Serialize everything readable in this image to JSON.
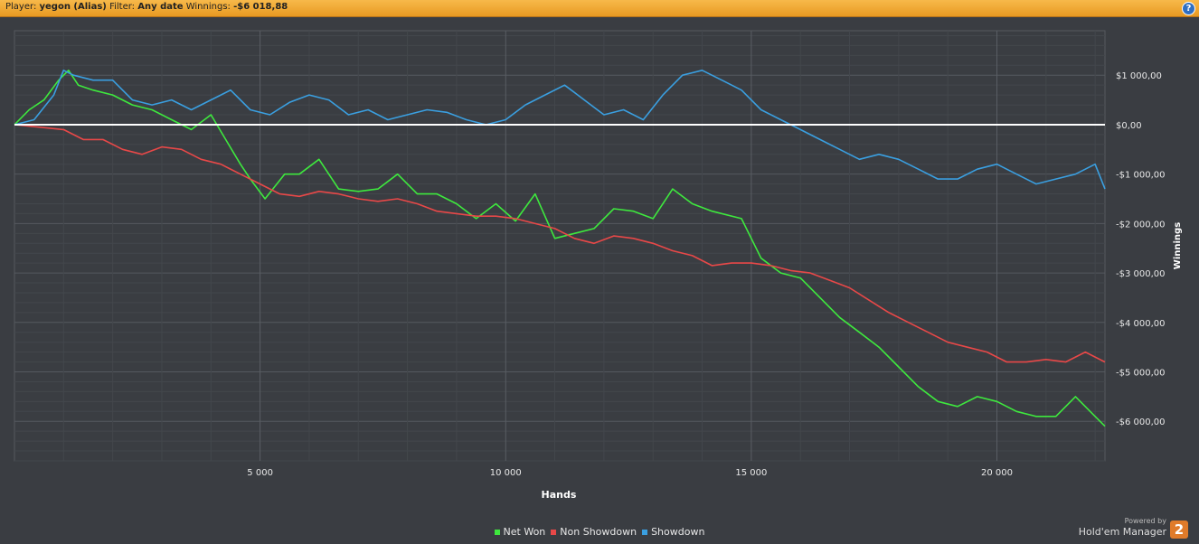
{
  "header": {
    "player_label": "Player:",
    "player_value": "yegon (Alias)",
    "filter_label": "Filter:",
    "filter_value": "Any date",
    "winnings_label": "Winnings:",
    "winnings_value": "-$6 018,88",
    "help_icon": "?"
  },
  "brand": {
    "powered_by": "Powered by",
    "product": "Hold'em Manager",
    "logo_text": "2"
  },
  "chart_data": {
    "type": "line",
    "xlabel": "Hands",
    "ylabel": "Winnings",
    "xlim": [
      0,
      22200
    ],
    "ylim": [
      -6800,
      1900
    ],
    "x_ticks": [
      5000,
      10000,
      15000,
      20000
    ],
    "x_tick_labels": [
      "5 000",
      "10 000",
      "15 000",
      "20 000"
    ],
    "y_ticks": [
      1000,
      0,
      -1000,
      -2000,
      -3000,
      -4000,
      -5000,
      -6000
    ],
    "y_tick_labels": [
      "$1 000,00",
      "$0,00",
      "-$1 000,00",
      "-$2 000,00",
      "-$3 000,00",
      "-$4 000,00",
      "-$5 000,00",
      "-$6 000,00"
    ],
    "grid": true,
    "legend_position": "bottom-center",
    "colors": {
      "background": "#3a3d42",
      "grid": "#4d5157",
      "zero_line": "#ffffff"
    },
    "series": [
      {
        "name": "Net Won",
        "color": "#3ee83e",
        "x": [
          0,
          300,
          600,
          900,
          1100,
          1300,
          1600,
          2000,
          2400,
          2800,
          3200,
          3600,
          4000,
          4300,
          4600,
          4800,
          5100,
          5500,
          5800,
          6200,
          6600,
          7000,
          7400,
          7800,
          8200,
          8600,
          9000,
          9400,
          9800,
          10200,
          10600,
          11000,
          11400,
          11800,
          12200,
          12600,
          13000,
          13400,
          13800,
          14200,
          14800,
          15200,
          15600,
          16000,
          16400,
          16800,
          17200,
          17600,
          18000,
          18400,
          18800,
          19200,
          19600,
          20000,
          20400,
          20800,
          21200,
          21600,
          22000,
          22200
        ],
        "y": [
          0,
          300,
          500,
          900,
          1100,
          800,
          700,
          600,
          400,
          300,
          100,
          -100,
          200,
          -300,
          -800,
          -1100,
          -1500,
          -1000,
          -1000,
          -700,
          -1300,
          -1350,
          -1300,
          -1000,
          -1400,
          -1400,
          -1600,
          -1900,
          -1600,
          -1950,
          -1400,
          -2300,
          -2200,
          -2100,
          -1700,
          -1750,
          -1900,
          -1300,
          -1600,
          -1750,
          -1900,
          -2700,
          -3000,
          -3100,
          -3500,
          -3900,
          -4200,
          -4500,
          -4900,
          -5300,
          -5600,
          -5700,
          -5500,
          -5600,
          -5800,
          -5900,
          -5900,
          -5500,
          -5900,
          -6100
        ]
      },
      {
        "name": "Non Showdown",
        "color": "#e84848",
        "x": [
          0,
          500,
          1000,
          1400,
          1800,
          2200,
          2600,
          3000,
          3400,
          3800,
          4200,
          4600,
          5000,
          5400,
          5800,
          6200,
          6600,
          7000,
          7400,
          7800,
          8200,
          8600,
          9000,
          9400,
          9800,
          10200,
          10600,
          11000,
          11400,
          11800,
          12200,
          12600,
          13000,
          13400,
          13800,
          14200,
          14600,
          15000,
          15400,
          15800,
          16200,
          16600,
          17000,
          17400,
          17800,
          18200,
          18600,
          19000,
          19400,
          19800,
          20200,
          20600,
          21000,
          21400,
          21800,
          22200
        ],
        "y": [
          0,
          -50,
          -100,
          -300,
          -300,
          -500,
          -600,
          -450,
          -500,
          -700,
          -800,
          -1000,
          -1200,
          -1400,
          -1450,
          -1350,
          -1400,
          -1500,
          -1550,
          -1500,
          -1600,
          -1750,
          -1800,
          -1850,
          -1850,
          -1900,
          -2000,
          -2100,
          -2300,
          -2400,
          -2250,
          -2300,
          -2400,
          -2550,
          -2650,
          -2850,
          -2800,
          -2800,
          -2850,
          -2950,
          -3000,
          -3150,
          -3300,
          -3550,
          -3800,
          -4000,
          -4200,
          -4400,
          -4500,
          -4600,
          -4800,
          -4800,
          -4750,
          -4800,
          -4600,
          -4800
        ]
      },
      {
        "name": "Showdown",
        "color": "#3a9fe0",
        "x": [
          0,
          400,
          800,
          1000,
          1200,
          1600,
          2000,
          2400,
          2800,
          3200,
          3600,
          4000,
          4400,
          4800,
          5200,
          5600,
          6000,
          6400,
          6800,
          7200,
          7600,
          8000,
          8400,
          8800,
          9200,
          9600,
          10000,
          10400,
          10800,
          11200,
          11600,
          12000,
          12400,
          12800,
          13200,
          13600,
          14000,
          14400,
          14800,
          15200,
          15600,
          16000,
          16400,
          16800,
          17200,
          17600,
          18000,
          18400,
          18800,
          19200,
          19600,
          20000,
          20400,
          20800,
          21200,
          21600,
          22000,
          22200
        ],
        "y": [
          0,
          100,
          600,
          1100,
          1000,
          900,
          900,
          500,
          400,
          500,
          300,
          500,
          700,
          300,
          200,
          450,
          600,
          500,
          200,
          300,
          100,
          200,
          300,
          250,
          100,
          0,
          100,
          400,
          600,
          800,
          500,
          200,
          300,
          100,
          600,
          1000,
          1100,
          900,
          700,
          300,
          100,
          -100,
          -300,
          -500,
          -700,
          -600,
          -700,
          -900,
          -1100,
          -1100,
          -900,
          -800,
          -1000,
          -1200,
          -1100,
          -1000,
          -800,
          -1300
        ]
      }
    ]
  }
}
